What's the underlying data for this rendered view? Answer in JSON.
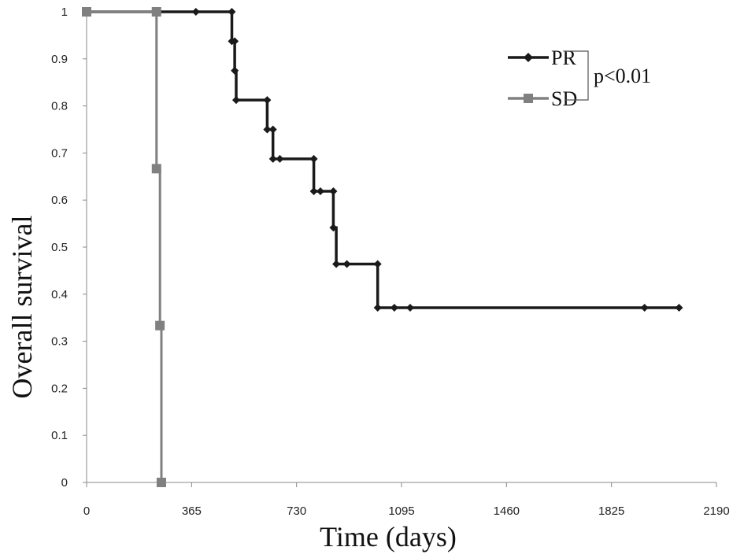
{
  "chart_data": {
    "type": "line",
    "step": true,
    "xlabel": "Time (days)",
    "ylabel": "Overall  survival",
    "xlim": [
      0,
      2190
    ],
    "ylim": [
      0,
      1
    ],
    "xticks": [
      "0",
      "365",
      "730",
      "1095",
      "1460",
      "1825",
      "2190"
    ],
    "yticks": [
      "0",
      "0.1",
      "0.2",
      "0.3",
      "0.4",
      "0.5",
      "0.6",
      "0.7",
      "0.8",
      "0.9",
      "1"
    ],
    "grid": false,
    "legend_position": "top-right",
    "annotation": "p<0.01",
    "series": [
      {
        "name": "PR",
        "color": "#1a1a1a",
        "marker": "diamond",
        "curve": [
          [
            0,
            1
          ],
          [
            505,
            1
          ],
          [
            505,
            0.9375
          ],
          [
            515,
            0.9375
          ],
          [
            515,
            0.875
          ],
          [
            520,
            0.875
          ],
          [
            520,
            0.8125
          ],
          [
            628,
            0.8125
          ],
          [
            628,
            0.75
          ],
          [
            648,
            0.75
          ],
          [
            648,
            0.6875
          ],
          [
            790,
            0.6875
          ],
          [
            790,
            0.6188
          ],
          [
            858,
            0.6188
          ],
          [
            858,
            0.5414
          ],
          [
            868,
            0.5414
          ],
          [
            868,
            0.4641
          ],
          [
            1012,
            0.4641
          ],
          [
            1012,
            0.3713
          ],
          [
            2060,
            0.3713
          ]
        ],
        "points": [
          [
            0,
            1
          ],
          [
            380,
            1
          ],
          [
            505,
            1
          ],
          [
            505,
            0.9375
          ],
          [
            515,
            0.9375
          ],
          [
            515,
            0.875
          ],
          [
            520,
            0.8125
          ],
          [
            628,
            0.8125
          ],
          [
            628,
            0.75
          ],
          [
            648,
            0.75
          ],
          [
            648,
            0.6875
          ],
          [
            672,
            0.6875
          ],
          [
            790,
            0.6875
          ],
          [
            790,
            0.6188
          ],
          [
            813,
            0.6188
          ],
          [
            858,
            0.6188
          ],
          [
            858,
            0.5414
          ],
          [
            868,
            0.4641
          ],
          [
            905,
            0.4641
          ],
          [
            1012,
            0.4641
          ],
          [
            1012,
            0.3713
          ],
          [
            1070,
            0.3713
          ],
          [
            1125,
            0.3713
          ],
          [
            1940,
            0.3713
          ],
          [
            2060,
            0.3713
          ]
        ]
      },
      {
        "name": "SD",
        "color": "#808080",
        "marker": "square",
        "curve": [
          [
            0,
            1
          ],
          [
            243,
            1
          ],
          [
            243,
            0.6667
          ],
          [
            255,
            0.6667
          ],
          [
            255,
            0.3333
          ],
          [
            260,
            0.3333
          ],
          [
            260,
            0
          ]
        ],
        "points": [
          [
            0,
            1
          ],
          [
            243,
            1
          ],
          [
            243,
            0.6667
          ],
          [
            255,
            0.3333
          ],
          [
            260,
            0
          ]
        ]
      }
    ]
  }
}
